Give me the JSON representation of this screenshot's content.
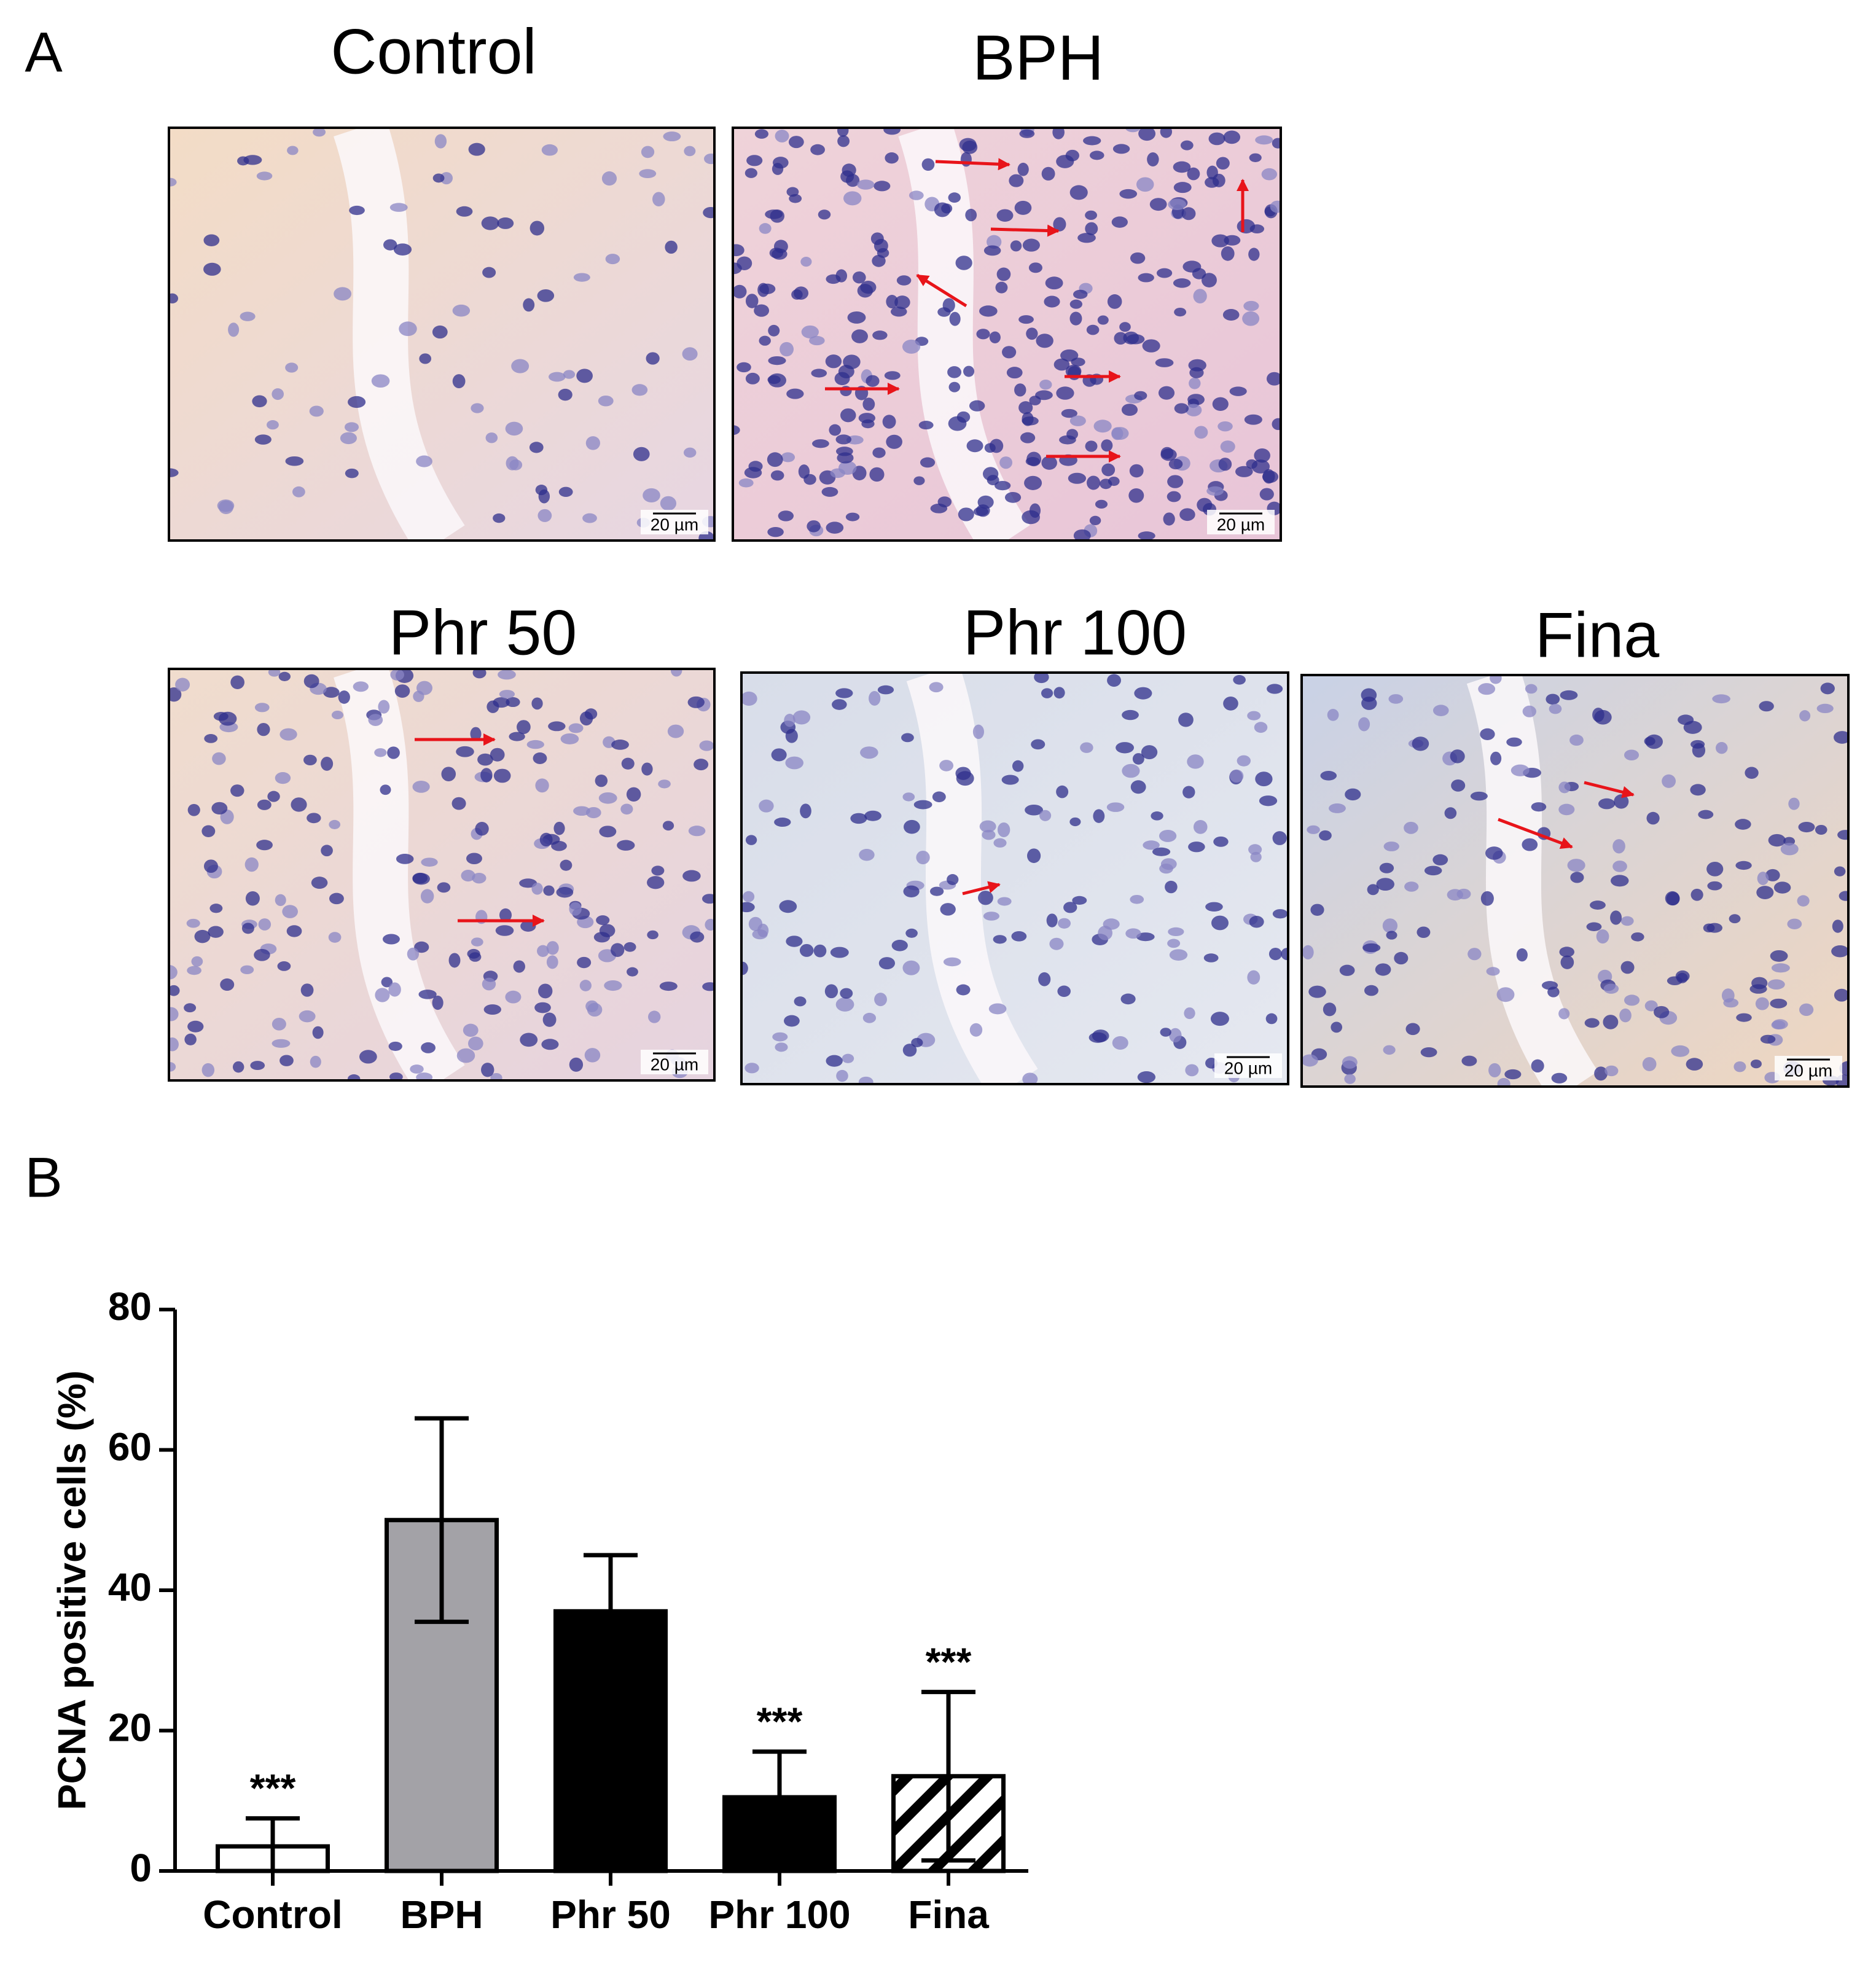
{
  "panel_labels": [
    "A",
    "B"
  ],
  "micrographs": [
    {
      "title": "Control",
      "scale_bar": "20 µm"
    },
    {
      "title": "BPH",
      "scale_bar": "20 µm"
    },
    {
      "title": "Phr 50",
      "scale_bar": "20 µm"
    },
    {
      "title": "Phr 100",
      "scale_bar": "20 µm"
    },
    {
      "title": "Fina",
      "scale_bar": "20 µm"
    }
  ],
  "chart_data": {
    "type": "bar",
    "ylabel": "PCNA positive cells (%)",
    "categories": [
      "Control",
      "BPH",
      "Phr 50",
      "Phr 100",
      "Fina"
    ],
    "values": [
      3.5,
      50,
      37,
      10.5,
      13.5
    ],
    "errors": [
      4,
      14.5,
      8,
      6.5,
      12
    ],
    "significance": [
      "***",
      null,
      null,
      "***",
      "***"
    ],
    "colors": [
      "#ffffff",
      "#a3a2a7",
      "#000000",
      "#000000",
      "#ffffff"
    ],
    "hatch": [
      false,
      false,
      false,
      false,
      true
    ],
    "ylim": [
      0,
      80
    ],
    "yticks": [
      0,
      20,
      40,
      60,
      80
    ]
  }
}
